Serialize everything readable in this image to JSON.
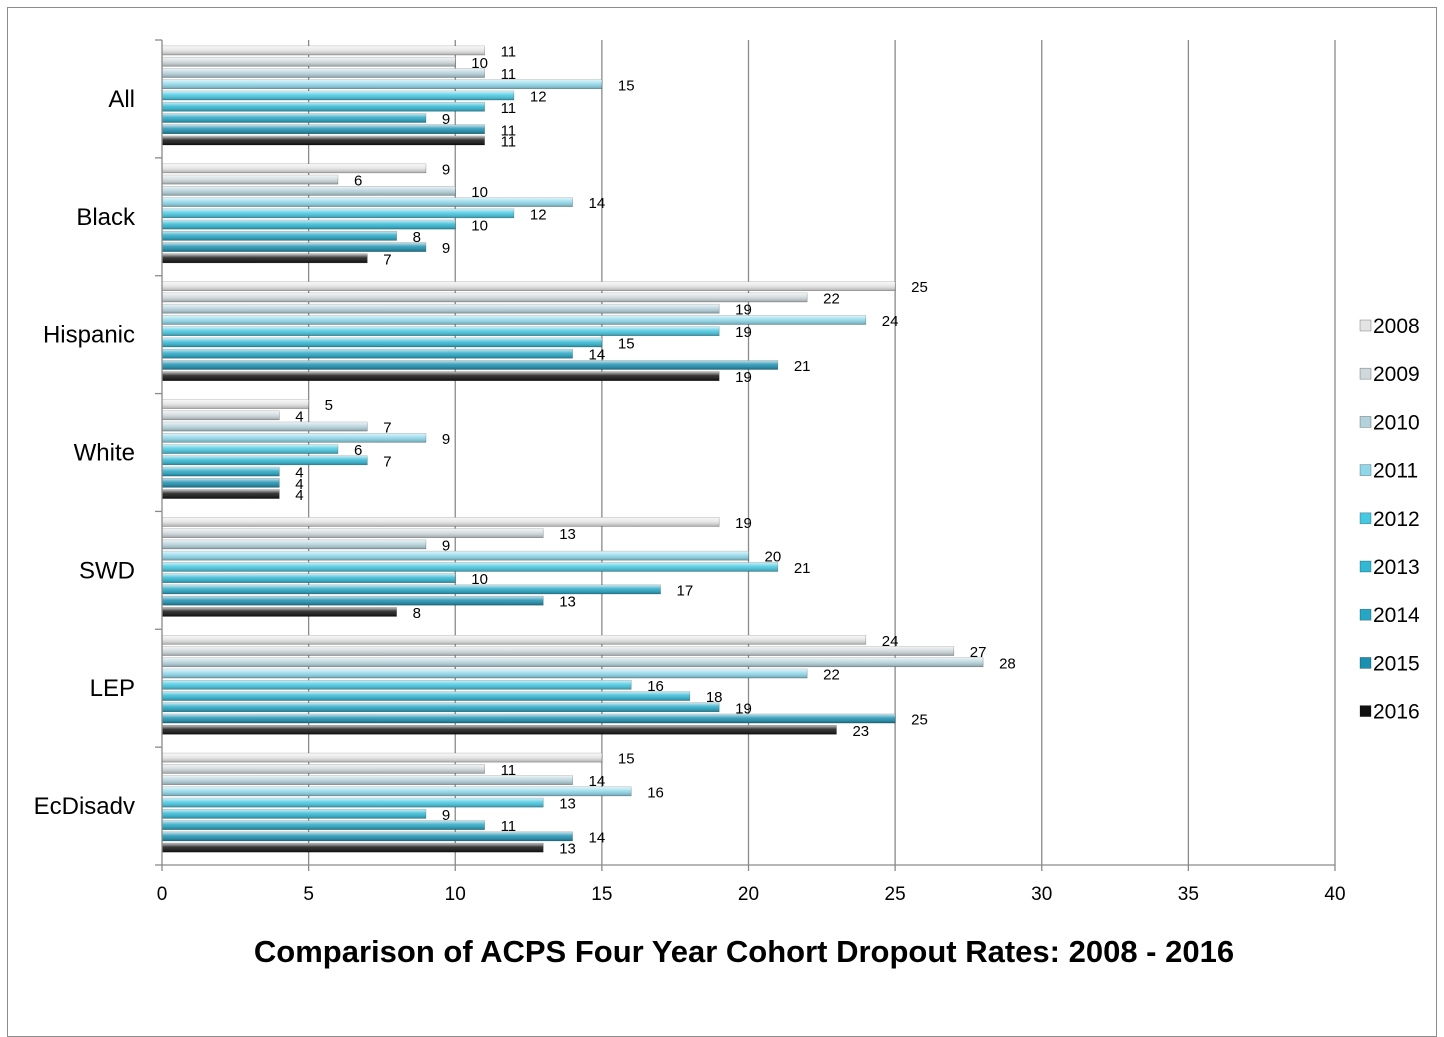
{
  "chart_data": {
    "type": "bar",
    "orientation": "horizontal",
    "title": "Comparison of ACPS Four Year Cohort Dropout Rates: 2008 - 2016",
    "categories": [
      "All",
      "Black",
      "Hispanic",
      "White",
      "SWD",
      "LEP",
      "EcDisadv"
    ],
    "xlim": [
      0,
      40
    ],
    "xticks": [
      0,
      5,
      10,
      15,
      20,
      25,
      30,
      35,
      40
    ],
    "tick_labels": [
      "0",
      "5",
      "10",
      "15",
      "20",
      "25",
      "30",
      "35",
      "40"
    ],
    "grid": true,
    "legend_position": "right",
    "series": [
      {
        "name": "2008",
        "color": "#e4e4e4",
        "values": [
          11,
          9,
          25,
          5,
          19,
          24,
          15
        ]
      },
      {
        "name": "2009",
        "color": "#cfd8dc",
        "values": [
          10,
          6,
          22,
          4,
          13,
          27,
          11
        ]
      },
      {
        "name": "2010",
        "color": "#b4d2dc",
        "values": [
          11,
          10,
          19,
          7,
          9,
          28,
          14
        ]
      },
      {
        "name": "2011",
        "color": "#8fd8ea",
        "values": [
          15,
          14,
          24,
          9,
          20,
          22,
          16
        ]
      },
      {
        "name": "2012",
        "color": "#45c8e2",
        "values": [
          12,
          12,
          19,
          6,
          21,
          16,
          13
        ]
      },
      {
        "name": "2013",
        "color": "#30b8d4",
        "values": [
          11,
          10,
          15,
          7,
          10,
          18,
          9
        ]
      },
      {
        "name": "2014",
        "color": "#25a6c4",
        "values": [
          9,
          8,
          14,
          4,
          17,
          19,
          11
        ]
      },
      {
        "name": "2015",
        "color": "#1b90b0",
        "values": [
          11,
          9,
          21,
          4,
          13,
          25,
          14
        ]
      },
      {
        "name": "2016",
        "color": "#111111",
        "values": [
          11,
          7,
          19,
          4,
          8,
          23,
          13
        ]
      }
    ]
  }
}
